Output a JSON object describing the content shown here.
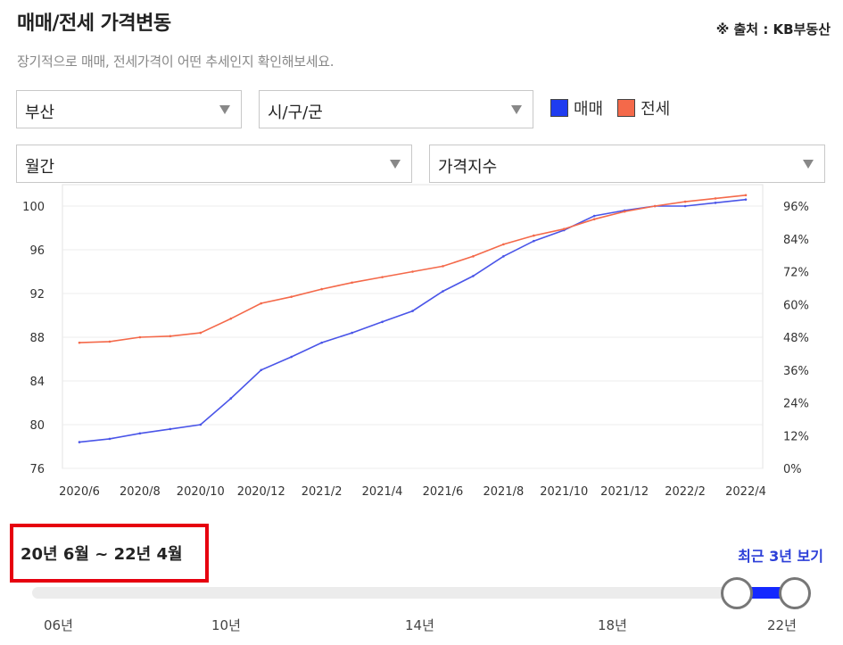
{
  "header": {
    "title": "매매/전세 가격변동",
    "source": "※ 출처 : KB부동산",
    "subtitle": "장기적으로 매매, 전세가격이 어떤 추세인지 확인해보세요."
  },
  "filters": {
    "region": "부산",
    "district": "시/구/군",
    "period": "월간",
    "metric": "가격지수"
  },
  "legend": {
    "sale": {
      "label": "매매",
      "color": "#1f3cf0"
    },
    "jeonse": {
      "label": "전세",
      "color": "#f4694a"
    }
  },
  "chart_data": {
    "type": "line",
    "x": [
      "2020/6",
      "2020/7",
      "2020/8",
      "2020/9",
      "2020/10",
      "2020/11",
      "2020/12",
      "2021/1",
      "2021/2",
      "2021/3",
      "2021/4",
      "2021/5",
      "2021/6",
      "2021/7",
      "2021/8",
      "2021/9",
      "2021/10",
      "2021/11",
      "2021/12",
      "2022/1",
      "2022/2",
      "2022/3",
      "2022/4"
    ],
    "x_tick_labels": [
      "2020/6",
      "2020/8",
      "2020/10",
      "2020/12",
      "2021/2",
      "2021/4",
      "2021/6",
      "2021/8",
      "2021/10",
      "2021/12",
      "2022/2",
      "2022/4"
    ],
    "y_ticks_left": [
      "100",
      "96",
      "92",
      "88",
      "84",
      "80",
      "76"
    ],
    "y_ticks_right": [
      "96%",
      "84%",
      "72%",
      "60%",
      "48%",
      "36%",
      "24%",
      "12%",
      "0%"
    ],
    "ylim": [
      76,
      100
    ],
    "series": [
      {
        "name": "매매",
        "color": "#4a55e8",
        "values": [
          78.4,
          78.7,
          79.2,
          79.6,
          80.0,
          82.4,
          85.0,
          86.2,
          87.5,
          88.4,
          89.4,
          90.4,
          92.2,
          93.6,
          95.4,
          96.8,
          97.8,
          99.1,
          99.6,
          100.0,
          100.0,
          100.3,
          100.6
        ]
      },
      {
        "name": "전세",
        "color": "#f4694a",
        "values": [
          87.5,
          87.6,
          88.0,
          88.1,
          88.4,
          89.7,
          91.1,
          91.7,
          92.4,
          93.0,
          93.5,
          94.0,
          94.5,
          95.4,
          96.5,
          97.3,
          97.9,
          98.8,
          99.5,
          100.0,
          100.4,
          100.7,
          101.0
        ]
      }
    ]
  },
  "range": {
    "label": "20년 6월 ~ 22년 4월",
    "recent_link": "최근 3년 보기",
    "ticks": [
      "06년",
      "10년",
      "14년",
      "18년",
      "22년"
    ]
  }
}
